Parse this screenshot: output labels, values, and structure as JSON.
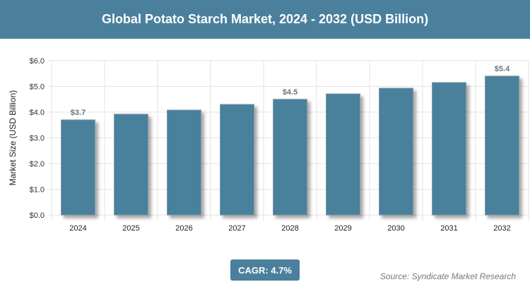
{
  "header": {
    "title": "Global Potato Starch Market, 2024 - 2032 (USD Billion)"
  },
  "chart_data": {
    "type": "bar",
    "title": "Global Potato Starch Market, 2024 - 2032 (USD Billion)",
    "xlabel": "",
    "ylabel": "Market Size (USD Billion)",
    "categories": [
      "2024",
      "2025",
      "2026",
      "2027",
      "2028",
      "2029",
      "2030",
      "2031",
      "2032"
    ],
    "values": [
      3.7,
      3.92,
      4.08,
      4.3,
      4.5,
      4.71,
      4.93,
      5.15,
      5.4
    ],
    "data_labels": {
      "0": "$3.7",
      "4": "$4.5",
      "8": "$5.4"
    },
    "yticks": [
      "$0.0",
      "$1.0",
      "$2.0",
      "$3.0",
      "$4.0",
      "$5.0",
      "$6.0"
    ],
    "ylim": [
      0,
      6
    ],
    "grid": true,
    "bar_color": "#4a809c"
  },
  "footer": {
    "cagr": "CAGR: 4.7%",
    "source": "Source: Syndicate Market Research"
  }
}
